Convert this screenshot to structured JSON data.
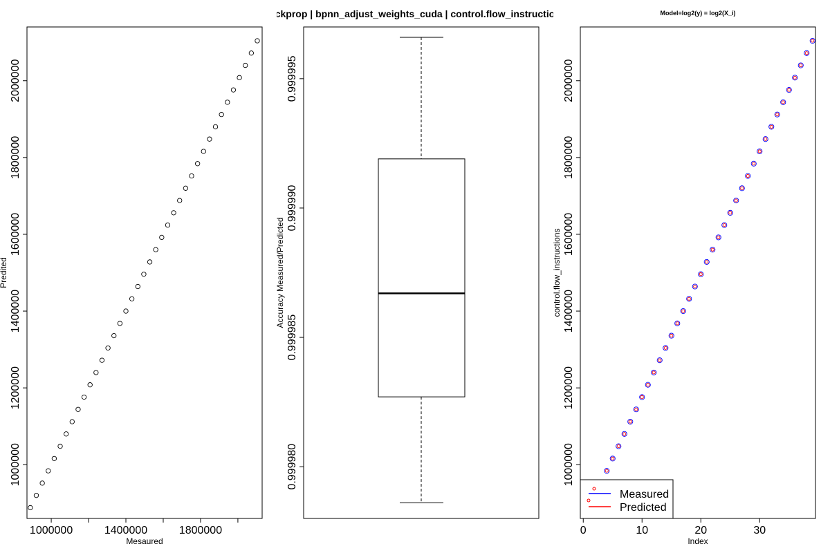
{
  "figure_title": "backprop | bpnn_adjust_weights_cuda | control.flow_instructions",
  "chart_data": [
    {
      "type": "scatter",
      "xlabel": "Mesaured",
      "ylabel": "Predited",
      "xlim": [
        870000,
        2130000
      ],
      "ylim": [
        860000,
        2140000
      ],
      "xticks": [
        1000000,
        1400000,
        1800000
      ],
      "xtick_labels": [
        "1000000",
        "1400000",
        "1800000"
      ],
      "xtick_extra": [
        1200000,
        1600000,
        2000000
      ],
      "yticks": [
        1000000,
        1200000,
        1400000,
        1600000,
        1800000,
        2000000
      ],
      "ytick_labels": [
        "1000000",
        "1200000",
        "1400000",
        "1600000",
        "1800000",
        "2000000"
      ],
      "x": [
        888000,
        920000,
        952000,
        984000,
        1016000,
        1048000,
        1080000,
        1112000,
        1144000,
        1176000,
        1208000,
        1240000,
        1272000,
        1304000,
        1336000,
        1368000,
        1400000,
        1432000,
        1464000,
        1496000,
        1528000,
        1560000,
        1592000,
        1624000,
        1656000,
        1688000,
        1720000,
        1752000,
        1784000,
        1816000,
        1848000,
        1880000,
        1912000,
        1944000,
        1976000,
        2008000,
        2040000,
        2072000,
        2104000
      ],
      "y": [
        888000,
        920000,
        952000,
        984000,
        1016000,
        1048000,
        1080000,
        1112000,
        1144000,
        1176000,
        1208000,
        1240000,
        1272000,
        1304000,
        1336000,
        1368000,
        1400000,
        1432000,
        1464000,
        1496000,
        1528000,
        1560000,
        1592000,
        1624000,
        1656000,
        1688000,
        1720000,
        1752000,
        1784000,
        1816000,
        1848000,
        1880000,
        1912000,
        1944000,
        1976000,
        2008000,
        2040000,
        2072000,
        2104000
      ],
      "grid": false
    },
    {
      "type": "box",
      "ylabel": "Accuracy  Measured/Predicted",
      "ylim": [
        0.999978,
        0.999997
      ],
      "yticks": [
        0.99998,
        0.999985,
        0.99999,
        0.999995
      ],
      "ytick_labels": [
        "0.999980",
        "0.999985",
        "0.999990",
        "0.999995"
      ],
      "whisker_low": 0.9999786,
      "q1": 0.9999827,
      "median": 0.9999867,
      "q3": 0.9999919,
      "whisker_high": 0.9999966,
      "grid": false
    },
    {
      "type": "scatter",
      "title": "Model=log2(y) = log2(X_i)",
      "xlabel": "Index",
      "ylabel": "control.flow_instructions",
      "xlim": [
        -0.5,
        39.5
      ],
      "ylim": [
        860000,
        2140000
      ],
      "xticks": [
        0,
        10,
        20,
        30
      ],
      "xtick_labels": [
        "0",
        "10",
        "20",
        "30"
      ],
      "yticks": [
        1000000,
        1200000,
        1400000,
        1600000,
        1800000,
        2000000
      ],
      "ytick_labels": [
        "1000000",
        "1200000",
        "1400000",
        "1600000",
        "1800000",
        "2000000"
      ],
      "index": [
        1,
        2,
        3,
        4,
        5,
        6,
        7,
        8,
        9,
        10,
        11,
        12,
        13,
        14,
        15,
        16,
        17,
        18,
        19,
        20,
        21,
        22,
        23,
        24,
        25,
        26,
        27,
        28,
        29,
        30,
        31,
        32,
        33,
        34,
        35,
        36,
        37,
        38,
        39
      ],
      "series": [
        {
          "name": "Measured",
          "color": "#0000ff",
          "values": [
            888000,
            920000,
            952000,
            984000,
            1016000,
            1048000,
            1080000,
            1112000,
            1144000,
            1176000,
            1208000,
            1240000,
            1272000,
            1304000,
            1336000,
            1368000,
            1400000,
            1432000,
            1464000,
            1496000,
            1528000,
            1560000,
            1592000,
            1624000,
            1656000,
            1688000,
            1720000,
            1752000,
            1784000,
            1816000,
            1848000,
            1880000,
            1912000,
            1944000,
            1976000,
            2008000,
            2040000,
            2072000,
            2104000
          ]
        },
        {
          "name": "Predicted",
          "color": "#ff0000",
          "values": [
            888000,
            920000,
            952000,
            984000,
            1016000,
            1048000,
            1080000,
            1112000,
            1144000,
            1176000,
            1208000,
            1240000,
            1272000,
            1304000,
            1336000,
            1368000,
            1400000,
            1432000,
            1464000,
            1496000,
            1528000,
            1560000,
            1592000,
            1624000,
            1656000,
            1688000,
            1720000,
            1752000,
            1784000,
            1816000,
            1848000,
            1880000,
            1912000,
            1944000,
            1976000,
            2008000,
            2040000,
            2072000,
            2104000
          ]
        }
      ],
      "legend": {
        "position": "bottom-left",
        "entries": [
          "Measured",
          "Predicted"
        ]
      },
      "grid": false
    }
  ]
}
